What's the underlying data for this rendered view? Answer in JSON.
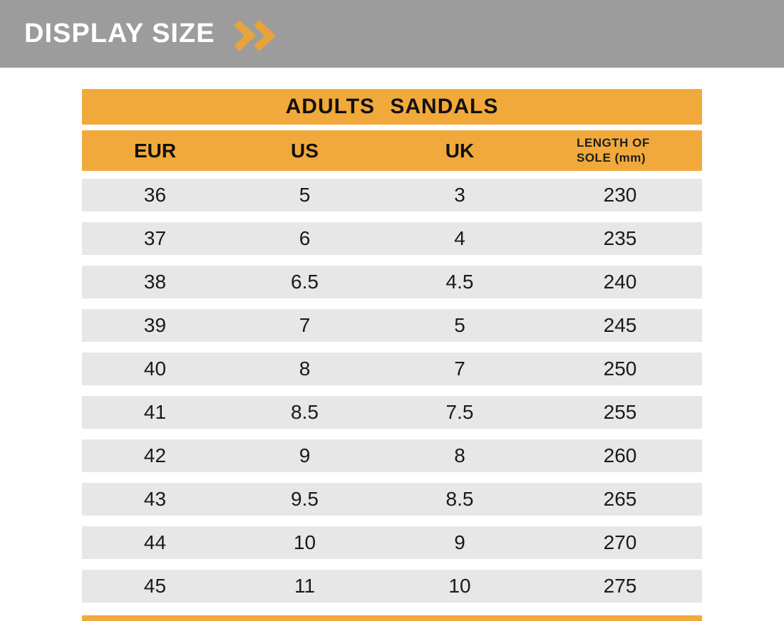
{
  "banner": {
    "title": "DISPLAY SIZE"
  },
  "colors": {
    "accent_orange": "#F2A93B",
    "banner_gray": "#9C9C9C",
    "row_gray": "#E7E7E7",
    "text_dark": "#1F1F1F",
    "title_text": "#111111"
  },
  "icons": {
    "double_chevron_right": "≫"
  },
  "chart_data": {
    "type": "table",
    "title": "ADULTS SANDALS",
    "columns": [
      "EUR",
      "US",
      "UK",
      "LENGTH OF SOLE (mm)"
    ],
    "length_header": {
      "line1": "LENGTH OF",
      "line2": "SOLE  (mm)"
    },
    "rows": [
      [
        "36",
        "5",
        "3",
        "230"
      ],
      [
        "37",
        "6",
        "4",
        "235"
      ],
      [
        "38",
        "6.5",
        "4.5",
        "240"
      ],
      [
        "39",
        "7",
        "5",
        "245"
      ],
      [
        "40",
        "8",
        "7",
        "250"
      ],
      [
        "41",
        "8.5",
        "7.5",
        "255"
      ],
      [
        "42",
        "9",
        "8",
        "260"
      ],
      [
        "43",
        "9.5",
        "8.5",
        "265"
      ],
      [
        "44",
        "10",
        "9",
        "270"
      ],
      [
        "45",
        "11",
        "10",
        "275"
      ]
    ]
  }
}
